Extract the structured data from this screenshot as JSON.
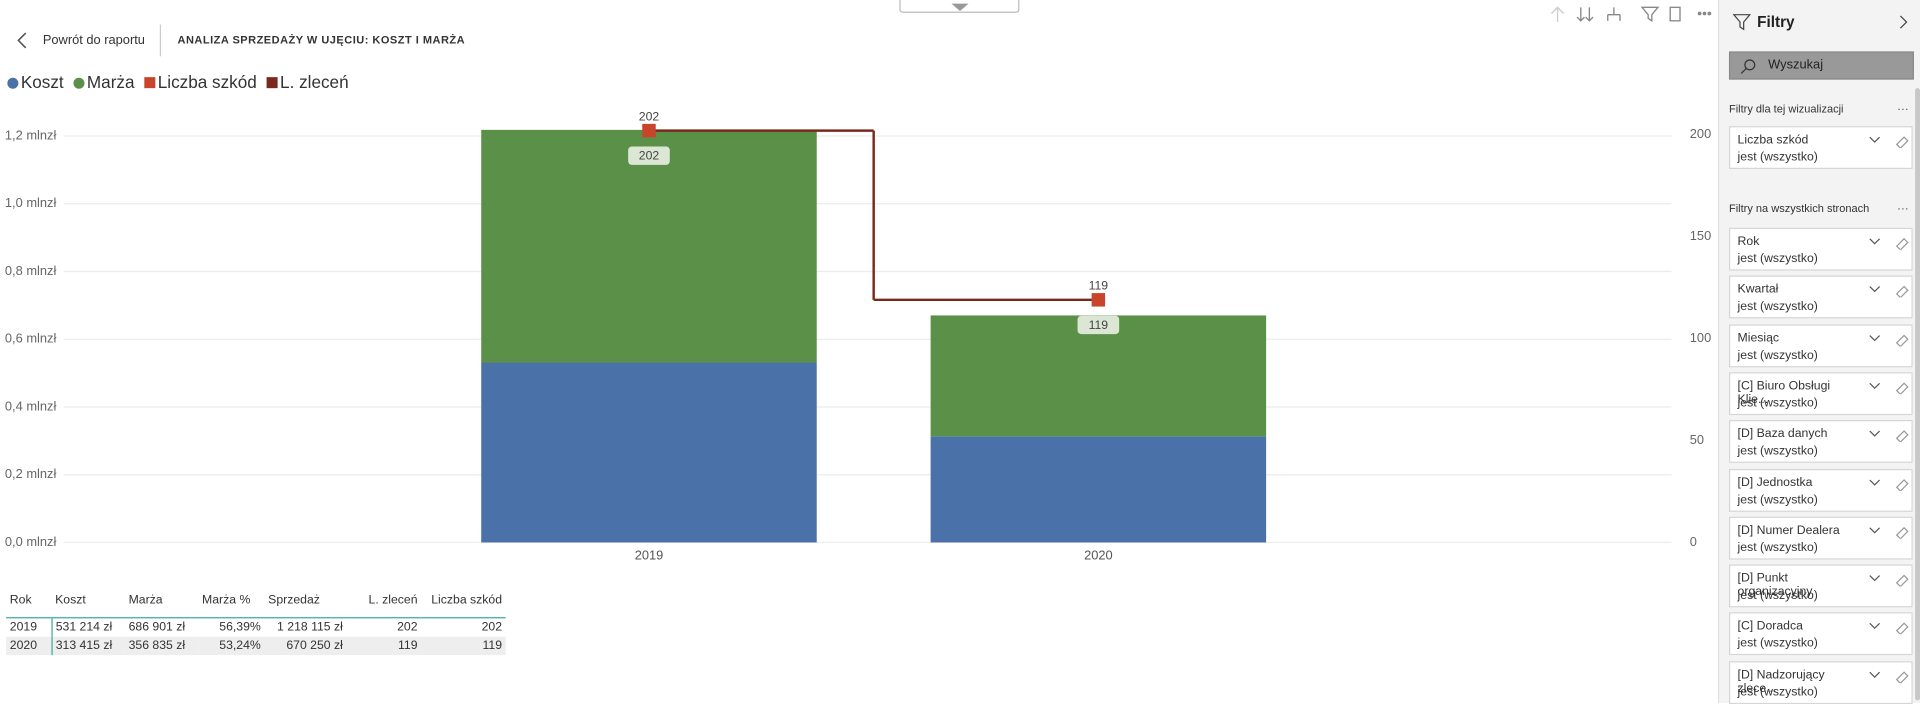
{
  "header": {
    "back": "Powrót do raportu",
    "title": "ANALIZA SPRZEDAŻY W UJĘCIU: KOSZT I MARŻA"
  },
  "chart_data": {
    "type": "bar",
    "stacked": true,
    "categories": [
      "2019",
      "2020"
    ],
    "series": [
      {
        "name": "Koszt",
        "color": "#4a72a9",
        "values": [
          531214,
          313415
        ]
      },
      {
        "name": "Marża",
        "color": "#5b9049",
        "values": [
          686901,
          356835
        ]
      },
      {
        "name": "Liczba szkód",
        "color": "#c8452b",
        "values": [
          202,
          119
        ],
        "axis": "y2",
        "marker": "square"
      },
      {
        "name": "L. zleceń",
        "color": "#7a2a1c",
        "values": [
          202,
          119
        ],
        "axis": "y2",
        "line": "step"
      }
    ],
    "ylim": [
      0,
      1240000
    ],
    "yticks": [
      {
        "value": 0,
        "label": "0,0 mlnzł"
      },
      {
        "value": 200000,
        "label": "0,2 mlnzł"
      },
      {
        "value": 400000,
        "label": "0,4 mlnzł"
      },
      {
        "value": 600000,
        "label": "0,6 mlnzł"
      },
      {
        "value": 800000,
        "label": "0,8 mlnzł"
      },
      {
        "value": 1000000,
        "label": "1,0 mlnzł"
      },
      {
        "value": 1200000,
        "label": "1,2 mlnzł"
      }
    ],
    "y2lim": [
      0,
      206
    ],
    "y2ticks": [
      0,
      50,
      100,
      150,
      200
    ],
    "grid": true
  },
  "table": {
    "columns": [
      "Rok",
      "Koszt",
      "Marża",
      "Marża %",
      "Sprzedaż",
      "L. zleceń",
      "Liczba szkód"
    ],
    "rows": [
      [
        "2019",
        "531 214 zł",
        "686 901 zł",
        "56,39%",
        "1 218 115 zł",
        "202",
        "202"
      ],
      [
        "2020",
        "313 415 zł",
        "356 835 zł",
        "53,24%",
        "670 250 zł",
        "119",
        "119"
      ]
    ]
  },
  "filters": {
    "title": "Filtry",
    "search": "Wyszukaj",
    "visual_section": "Filtry dla tej wizualizacji",
    "visual_filters": [
      {
        "name": "Liczba szkód",
        "state": "jest (wszystko)"
      }
    ],
    "page_section": "Filtry na wszystkich stronach",
    "page_filters": [
      {
        "name": "Rok",
        "state": "jest (wszystko)"
      },
      {
        "name": "Kwartał",
        "state": "jest (wszystko)"
      },
      {
        "name": "Miesiąc",
        "state": "jest (wszystko)"
      },
      {
        "name": "[C] Biuro Obsługi Klie...",
        "state": "jest (wszystko)"
      },
      {
        "name": "[D] Baza danych",
        "state": "jest (wszystko)"
      },
      {
        "name": "[D] Jednostka",
        "state": "jest (wszystko)"
      },
      {
        "name": "[D] Numer Dealera",
        "state": "jest (wszystko)"
      },
      {
        "name": "[D] Punkt organizacyjny",
        "state": "jest (wszystko)"
      },
      {
        "name": "[C] Doradca",
        "state": "jest (wszystko)"
      },
      {
        "name": "[D] Nadzorujący zlece...",
        "state": "jest (wszystko)"
      }
    ]
  }
}
